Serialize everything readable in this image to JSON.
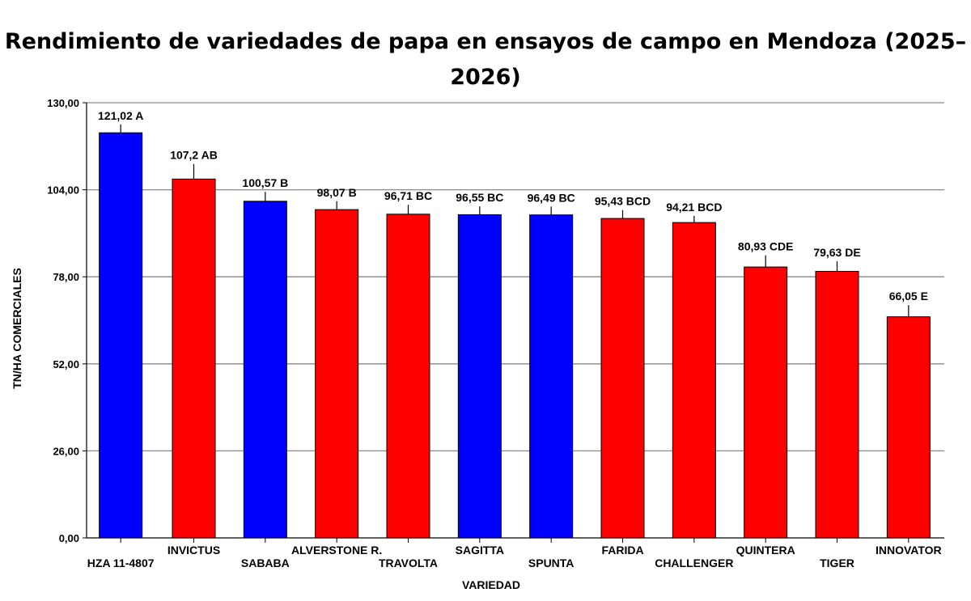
{
  "chart_data": {
    "type": "bar",
    "title": "Rendimiento de variedades de papa en ensayos de campo en Mendoza (2025–2026)",
    "xlabel": "VARIEDAD",
    "ylabel": "TN/HA COMERCIALES",
    "ylim": [
      0,
      130
    ],
    "yticks": [
      "0,00",
      "26,00",
      "52,00",
      "78,00",
      "104,00",
      "130,00"
    ],
    "grid": true,
    "categories": [
      "HZA 11-4807",
      "INVICTUS",
      "SABABA",
      "ALVERSTONE R.",
      "TRAVOLTA",
      "SAGITTA",
      "SPUNTA",
      "FARIDA",
      "CHALLENGER",
      "QUINTERA",
      "TIGER",
      "INNOVATOR"
    ],
    "values": [
      121.02,
      107.2,
      100.57,
      98.07,
      96.71,
      96.55,
      96.49,
      95.43,
      94.21,
      80.93,
      79.63,
      66.05
    ],
    "errors": [
      2.5,
      4.5,
      2.8,
      2.5,
      2.8,
      2.5,
      2.5,
      2.5,
      2,
      3.5,
      3,
      3.5
    ],
    "data_labels": [
      "121,02 A",
      "107,2 AB",
      "100,57 B",
      "98,07 B",
      "96,71 BC",
      "96,55 BC",
      "96,49 BC",
      "95,43 BCD",
      "94,21 BCD",
      "80,93 CDE",
      "79,63 DE",
      "66,05 E"
    ],
    "colors": [
      "#0000ff",
      "#ff0000",
      "#0000ff",
      "#ff0000",
      "#ff0000",
      "#0000ff",
      "#0000ff",
      "#ff0000",
      "#ff0000",
      "#ff0000",
      "#ff0000",
      "#ff0000"
    ]
  }
}
